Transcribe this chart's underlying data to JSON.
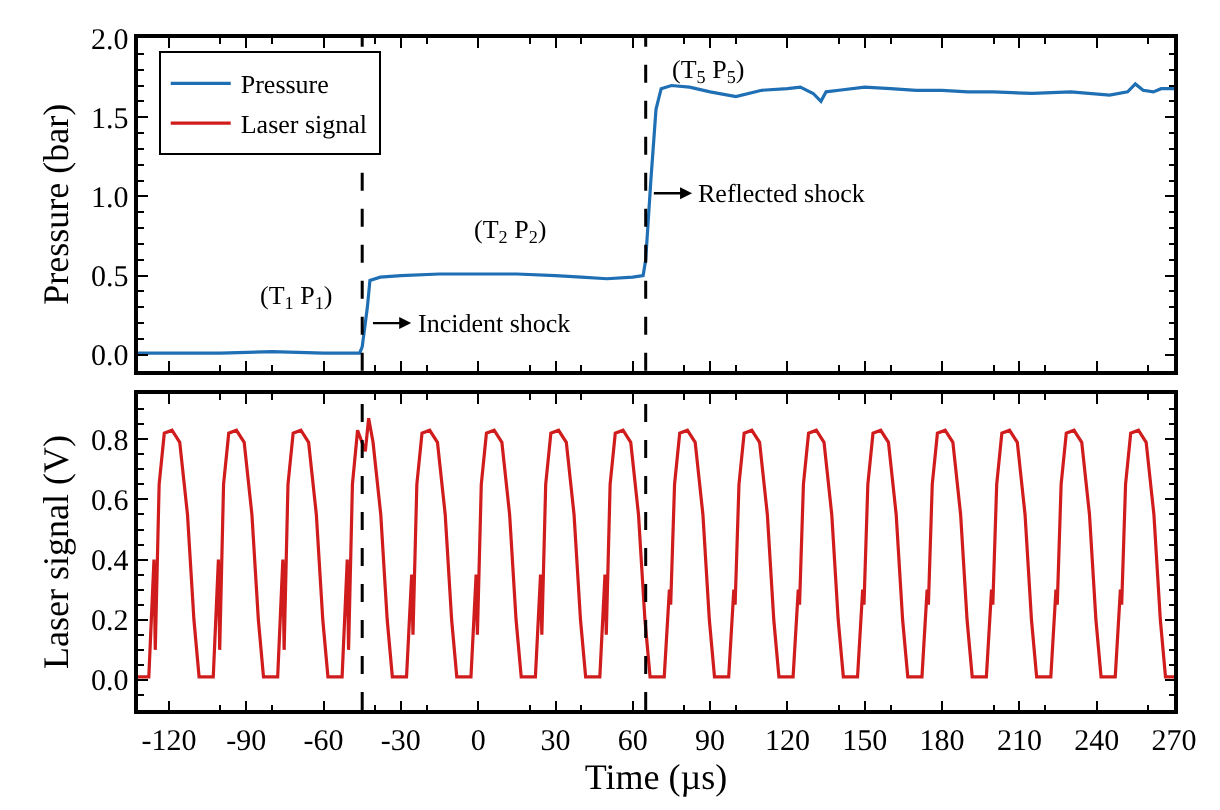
{
  "chart_data": [
    {
      "type": "line",
      "ylabel": "Pressure (bar)",
      "xlim": [
        -132,
        270
      ],
      "xticks": [
        -120,
        -90,
        -60,
        -30,
        0,
        30,
        60,
        90,
        120,
        150,
        180,
        210,
        240,
        270
      ],
      "ylim": [
        -0.1,
        2.0
      ],
      "yticks": [
        {
          "value": 0,
          "label": "0.0"
        },
        0.5,
        {
          "value": 1,
          "label": "1.0"
        },
        1.5,
        {
          "value": 2,
          "label": "2.0"
        }
      ],
      "tick_labels": "y",
      "legend": "top left",
      "marker": "none",
      "line_style": "solid",
      "series": [
        {
          "name": "Pressure",
          "color": "#1f6fb4",
          "x": [
            -132,
            -120,
            -100,
            -80,
            -60,
            -46,
            -45,
            -43,
            -42,
            -38,
            -30,
            -15,
            0,
            15,
            30,
            40,
            50,
            60,
            64,
            65,
            67,
            69,
            71,
            75,
            82,
            90,
            100,
            110,
            120,
            125,
            130,
            133,
            135,
            140,
            150,
            160,
            170,
            180,
            190,
            200,
            215,
            230,
            245,
            252,
            255,
            258,
            262,
            265,
            270
          ],
          "values": [
            0.01,
            0.01,
            0.01,
            0.02,
            0.01,
            0.01,
            0.05,
            0.3,
            0.47,
            0.49,
            0.5,
            0.51,
            0.51,
            0.51,
            0.5,
            0.49,
            0.48,
            0.49,
            0.5,
            0.6,
            1.1,
            1.55,
            1.68,
            1.7,
            1.69,
            1.66,
            1.63,
            1.67,
            1.68,
            1.69,
            1.65,
            1.6,
            1.66,
            1.67,
            1.69,
            1.68,
            1.67,
            1.67,
            1.66,
            1.66,
            1.65,
            1.66,
            1.64,
            1.66,
            1.71,
            1.67,
            1.66,
            1.68,
            1.68
          ]
        }
      ],
      "ref_lines": [
        {
          "axis": "x",
          "value": -45,
          "color": "#000000",
          "line_style": "dashed"
        },
        {
          "axis": "x",
          "value": 65,
          "color": "#000000",
          "line_style": "dashed"
        }
      ],
      "annotations": [
        "(T$_{1}$ P$_{1}$)",
        "(T$_{2}$ P$_{2}$)",
        "(T$_{5}$ P$_{5}$)",
        {
          "text": "Incident shock",
          "x": -42,
          "y": 0.2
        },
        {
          "text": "Reflected shock",
          "x": 67,
          "y": 1.02
        }
      ]
    },
    {
      "type": "line",
      "xlabel": "Time (µs)",
      "ylabel": "Laser signal (V)",
      "xlim": [
        -132,
        270
      ],
      "xticks": [
        -120,
        -90,
        -60,
        -30,
        0,
        30,
        60,
        90,
        120,
        150,
        180,
        210,
        240,
        270
      ],
      "ylim": [
        -0.1,
        0.95
      ],
      "yticks": [
        {
          "value": 0,
          "label": "0.0"
        },
        0.2,
        0.4,
        0.6,
        0.8
      ],
      "marker": "none",
      "line_style": "solid",
      "series": [
        {
          "name": "Laser signal",
          "color": "#d01c1c",
          "x": [
            -132,
            -127.8,
            -125.8,
            -125.3,
            -123.8,
            -121.8,
            -118.8,
            -115.8,
            -112.8,
            -110.3,
            -108.3,
            -102.8,
            -100.8,
            -100.3,
            -98.8,
            -96.8,
            -93.8,
            -90.8,
            -87.8,
            -85.3,
            -83.3,
            -77.8,
            -75.8,
            -75.3,
            -73.8,
            -71.8,
            -68.8,
            -65.8,
            -62.8,
            -60.3,
            -58.3,
            -52.8,
            -50.8,
            -50.3,
            -48.8,
            -46.8,
            -43.8,
            -42.5,
            -40.8,
            -37.8,
            -35.3,
            -33.3,
            -27.8,
            -25.8,
            -25.3,
            -23.8,
            -21.8,
            -18.8,
            -15.8,
            -12.8,
            -10.3,
            -8.3,
            -2.8,
            -0.8,
            -0.3,
            1.2,
            3.2,
            6.2,
            9.2,
            12.2,
            14.7,
            16.7,
            22.2,
            24.2,
            24.7,
            26.2,
            28.2,
            31.2,
            34.2,
            37.2,
            39.7,
            41.7,
            47.2,
            49.2,
            49.7,
            51.2,
            53.2,
            56.2,
            59.2,
            62.2,
            64.7,
            66.7,
            72.2,
            74.2,
            74.7,
            76.2,
            78.2,
            81.2,
            84.2,
            87.2,
            89.7,
            91.7,
            97.2,
            99.2,
            99.7,
            101.2,
            103.2,
            106.2,
            109.2,
            112.2,
            114.7,
            116.7,
            122.2,
            124.2,
            124.7,
            126.2,
            128.2,
            131.2,
            134.2,
            137.2,
            139.7,
            141.7,
            147.2,
            149.2,
            149.7,
            151.2,
            153.2,
            156.2,
            159.2,
            162.2,
            164.7,
            166.7,
            172.2,
            174.2,
            174.7,
            176.2,
            178.2,
            181.2,
            184.2,
            187.2,
            189.7,
            191.7,
            197.2,
            199.2,
            199.7,
            201.2,
            203.2,
            206.2,
            209.2,
            212.2,
            214.7,
            216.7,
            222.2,
            224.2,
            224.7,
            226.2,
            228.2,
            231.2,
            234.2,
            237.2,
            239.7,
            241.7,
            247.2,
            249.2,
            249.7,
            251.2,
            253.2,
            256.2,
            259.2,
            262.2,
            264.7,
            266.7,
            270
          ],
          "values": [
            0.01,
            0.01,
            0.4,
            0.1,
            0.65,
            0.82,
            0.83,
            0.79,
            0.55,
            0.2,
            0.01,
            0.01,
            0.4,
            0.1,
            0.65,
            0.82,
            0.83,
            0.79,
            0.55,
            0.2,
            0.01,
            0.01,
            0.4,
            0.1,
            0.65,
            0.82,
            0.83,
            0.79,
            0.55,
            0.2,
            0.01,
            0.01,
            0.4,
            0.1,
            0.65,
            0.83,
            0.76,
            0.87,
            0.79,
            0.55,
            0.2,
            0.01,
            0.01,
            0.35,
            0.15,
            0.65,
            0.82,
            0.83,
            0.79,
            0.55,
            0.2,
            0.01,
            0.01,
            0.35,
            0.15,
            0.65,
            0.82,
            0.83,
            0.79,
            0.55,
            0.2,
            0.01,
            0.01,
            0.35,
            0.15,
            0.65,
            0.82,
            0.83,
            0.79,
            0.55,
            0.2,
            0.01,
            0.01,
            0.35,
            0.15,
            0.65,
            0.82,
            0.83,
            0.79,
            0.55,
            0.2,
            0.01,
            0.01,
            0.3,
            0.25,
            0.65,
            0.82,
            0.83,
            0.79,
            0.55,
            0.2,
            0.01,
            0.01,
            0.3,
            0.25,
            0.65,
            0.82,
            0.83,
            0.79,
            0.55,
            0.2,
            0.01,
            0.01,
            0.3,
            0.25,
            0.65,
            0.82,
            0.83,
            0.79,
            0.55,
            0.2,
            0.01,
            0.01,
            0.3,
            0.25,
            0.65,
            0.82,
            0.83,
            0.79,
            0.55,
            0.2,
            0.01,
            0.01,
            0.3,
            0.25,
            0.65,
            0.82,
            0.83,
            0.79,
            0.55,
            0.2,
            0.01,
            0.01,
            0.3,
            0.25,
            0.65,
            0.82,
            0.83,
            0.79,
            0.55,
            0.2,
            0.01,
            0.01,
            0.3,
            0.25,
            0.65,
            0.82,
            0.83,
            0.79,
            0.55,
            0.2,
            0.01,
            0.01,
            0.3,
            0.25,
            0.65,
            0.82,
            0.83,
            0.79,
            0.55,
            0.2,
            0.01,
            0.01
          ]
        }
      ],
      "ref_lines": [
        {
          "axis": "x",
          "value": -45,
          "color": "#000000",
          "line_style": "dashed"
        },
        {
          "axis": "x",
          "value": 65,
          "color": "#000000",
          "line_style": "dashed"
        }
      ]
    }
  ]
}
